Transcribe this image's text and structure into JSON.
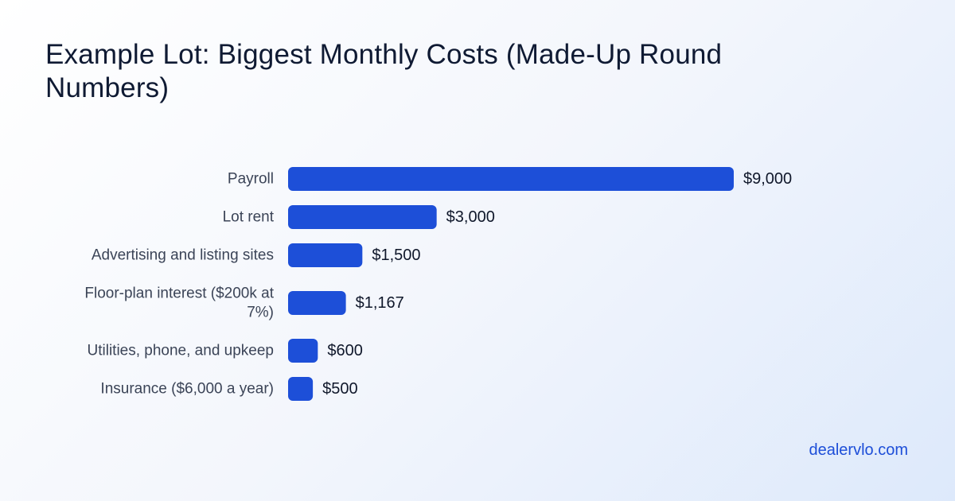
{
  "title": "Example Lot: Biggest Monthly Costs (Made-Up Round Numbers)",
  "site_link": "dealervlo.com",
  "chart_data": {
    "type": "bar",
    "orientation": "horizontal",
    "title": "Example Lot: Biggest Monthly Costs (Made-Up Round Numbers)",
    "xlabel": "",
    "ylabel": "",
    "grid": false,
    "bar_color": "#1d4fd8",
    "categories": [
      [
        "Payroll"
      ],
      [
        "Lot rent"
      ],
      [
        "Advertising and listing sites"
      ],
      [
        "Floor-plan interest ($200k at",
        "7%)"
      ],
      [
        "Utilities, phone, and upkeep"
      ],
      [
        "Insurance ($6,000 a year)"
      ]
    ],
    "values": [
      9000,
      3000,
      1500,
      1167,
      600,
      500
    ],
    "value_labels": [
      "$9,000",
      "$3,000",
      "$1,500",
      "$1,167",
      "$600",
      "$500"
    ],
    "xlim": [
      0,
      9000
    ]
  }
}
